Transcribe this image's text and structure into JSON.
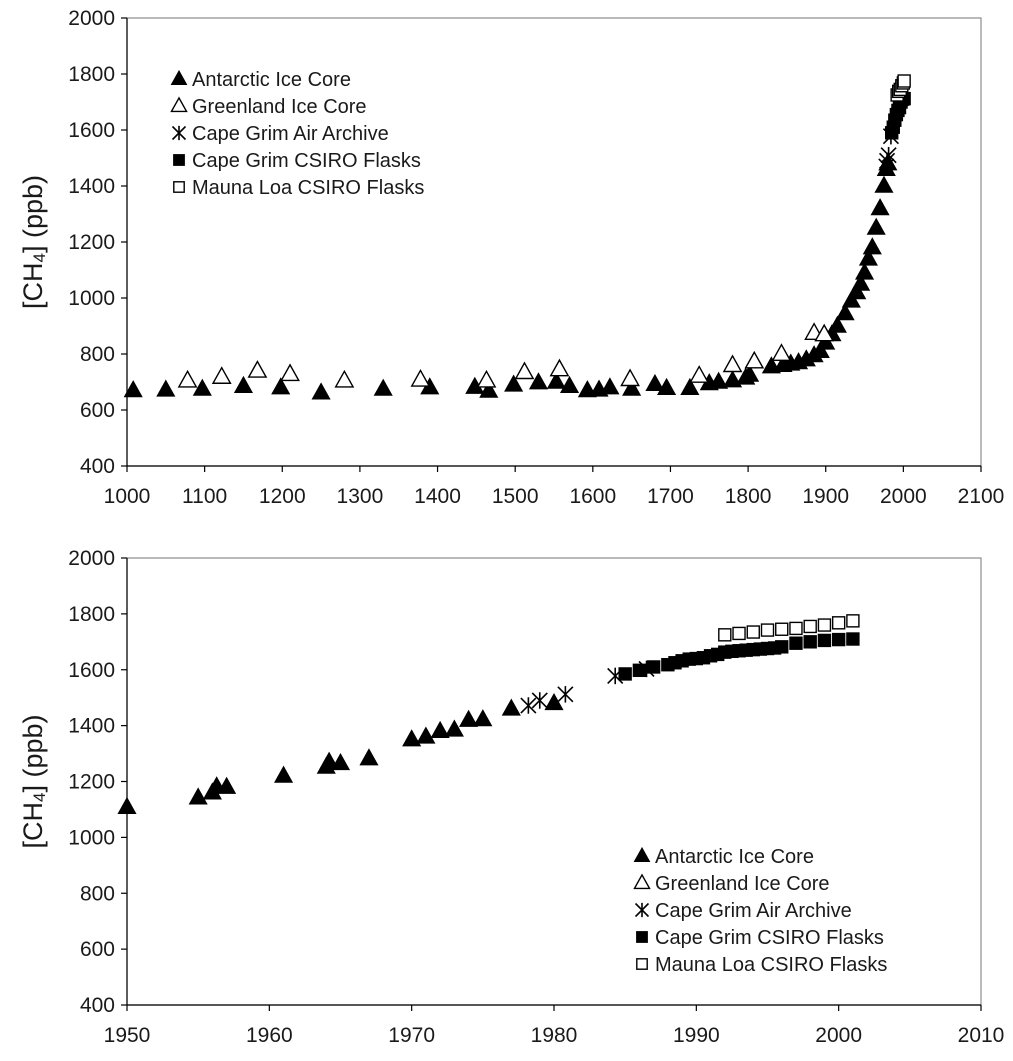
{
  "chart_data": [
    {
      "type": "scatter",
      "title": "",
      "xlabel": "",
      "ylabel": "[CH4] (ppb)",
      "xlim": [
        1000,
        2100
      ],
      "ylim": [
        400,
        2000
      ],
      "xticks": [
        1000,
        1100,
        1200,
        1300,
        1400,
        1500,
        1600,
        1700,
        1800,
        1900,
        2000,
        2100
      ],
      "yticks": [
        400,
        600,
        800,
        1000,
        1200,
        1400,
        1600,
        1800,
        2000
      ],
      "grid": false,
      "legend_position": "top-left",
      "series": [
        {
          "name": "Antarctic Ice Core",
          "marker": "triangle-filled",
          "points": [
            [
              1008,
              670
            ],
            [
              1050,
              672
            ],
            [
              1097,
              675
            ],
            [
              1150,
              685
            ],
            [
              1198,
              680
            ],
            [
              1250,
              662
            ],
            [
              1330,
              675
            ],
            [
              1390,
              680
            ],
            [
              1448,
              682
            ],
            [
              1466,
              668
            ],
            [
              1498,
              690
            ],
            [
              1530,
              698
            ],
            [
              1553,
              700
            ],
            [
              1570,
              685
            ],
            [
              1593,
              670
            ],
            [
              1608,
              672
            ],
            [
              1622,
              680
            ],
            [
              1650,
              675
            ],
            [
              1680,
              692
            ],
            [
              1695,
              678
            ],
            [
              1725,
              678
            ],
            [
              1750,
              695
            ],
            [
              1762,
              700
            ],
            [
              1780,
              705
            ],
            [
              1797,
              715
            ],
            [
              1802,
              725
            ],
            [
              1830,
              755
            ],
            [
              1845,
              760
            ],
            [
              1855,
              765
            ],
            [
              1865,
              770
            ],
            [
              1875,
              780
            ],
            [
              1885,
              795
            ],
            [
              1893,
              810
            ],
            [
              1900,
              840
            ],
            [
              1908,
              870
            ],
            [
              1915,
              900
            ],
            [
              1925,
              945
            ],
            [
              1933,
              990
            ],
            [
              1940,
              1020
            ],
            [
              1945,
              1050
            ],
            [
              1950,
              1090
            ],
            [
              1955,
              1140
            ],
            [
              1960,
              1180
            ],
            [
              1965,
              1250
            ],
            [
              1970,
              1320
            ],
            [
              1975,
              1400
            ],
            [
              1978,
              1460
            ],
            [
              1980,
              1480
            ]
          ]
        },
        {
          "name": "Greenland Ice Core",
          "marker": "triangle-open",
          "points": [
            [
              1078,
              705
            ],
            [
              1122,
              718
            ],
            [
              1168,
              740
            ],
            [
              1210,
              728
            ],
            [
              1280,
              705
            ],
            [
              1378,
              708
            ],
            [
              1463,
              705
            ],
            [
              1512,
              735
            ],
            [
              1557,
              745
            ],
            [
              1648,
              710
            ],
            [
              1737,
              722
            ],
            [
              1780,
              760
            ],
            [
              1808,
              773
            ],
            [
              1843,
              800
            ],
            [
              1885,
              875
            ],
            [
              1898,
              870
            ]
          ]
        },
        {
          "name": "Cape Grim Air Archive",
          "marker": "asterisk",
          "points": [
            [
              1978,
              1470
            ],
            [
              1979,
              1490
            ],
            [
              1981,
              1510
            ],
            [
              1984,
              1578
            ]
          ]
        },
        {
          "name": "Cape Grim CSIRO Flasks",
          "marker": "square-filled",
          "points": [
            [
              1985,
              1590
            ],
            [
              1987,
              1610
            ],
            [
              1989,
              1635
            ],
            [
              1991,
              1655
            ],
            [
              1993,
              1670
            ],
            [
              1995,
              1680
            ],
            [
              1997,
              1700
            ],
            [
              1999,
              1710
            ],
            [
              2001,
              1712
            ]
          ]
        },
        {
          "name": "Mauna Loa CSIRO Flasks",
          "marker": "square-open",
          "points": [
            [
              1992,
              1725
            ],
            [
              1994,
              1738
            ],
            [
              1996,
              1745
            ],
            [
              1998,
              1758
            ],
            [
              2000,
              1768
            ],
            [
              2001,
              1775
            ]
          ]
        }
      ]
    },
    {
      "type": "scatter",
      "title": "",
      "xlabel": "",
      "ylabel": "[CH4] (ppb)",
      "xlim": [
        1950,
        2010
      ],
      "ylim": [
        400,
        2000
      ],
      "xticks": [
        1950,
        1960,
        1970,
        1980,
        1990,
        2000,
        2010
      ],
      "yticks": [
        400,
        600,
        800,
        1000,
        1200,
        1400,
        1600,
        1800,
        2000
      ],
      "grid": false,
      "legend_position": "bottom-right",
      "series": [
        {
          "name": "Antarctic Ice Core",
          "marker": "triangle-filled",
          "points": [
            [
              1950,
              1108
            ],
            [
              1955,
              1142
            ],
            [
              1956,
              1160
            ],
            [
              1956.3,
              1182
            ],
            [
              1957,
              1180
            ],
            [
              1961,
              1220
            ],
            [
              1964,
              1252
            ],
            [
              1964.2,
              1270
            ],
            [
              1965,
              1265
            ],
            [
              1967,
              1282
            ],
            [
              1970,
              1350
            ],
            [
              1971,
              1360
            ],
            [
              1972,
              1380
            ],
            [
              1973,
              1385
            ],
            [
              1974,
              1420
            ],
            [
              1975,
              1422
            ],
            [
              1977,
              1460
            ],
            [
              1980,
              1480
            ]
          ]
        },
        {
          "name": "Greenland Ice Core",
          "marker": "triangle-open",
          "points": []
        },
        {
          "name": "Cape Grim Air Archive",
          "marker": "asterisk",
          "points": [
            [
              1978.2,
              1472
            ],
            [
              1979,
              1490
            ],
            [
              1980.8,
              1512
            ],
            [
              1984.3,
              1578
            ],
            [
              1986.5,
              1603
            ]
          ]
        },
        {
          "name": "Cape Grim CSIRO Flasks",
          "marker": "square-filled",
          "points": [
            [
              1985,
              1585
            ],
            [
              1986,
              1598
            ],
            [
              1987,
              1610
            ],
            [
              1988,
              1618
            ],
            [
              1988.5,
              1625
            ],
            [
              1989,
              1632
            ],
            [
              1989.5,
              1638
            ],
            [
              1990,
              1640
            ],
            [
              1990.5,
              1643
            ],
            [
              1991,
              1650
            ],
            [
              1991.5,
              1655
            ],
            [
              1992,
              1663
            ],
            [
              1992.5,
              1666
            ],
            [
              1993,
              1668
            ],
            [
              1993.5,
              1670
            ],
            [
              1994,
              1672
            ],
            [
              1994.5,
              1674
            ],
            [
              1995,
              1676
            ],
            [
              1995.5,
              1678
            ],
            [
              1996,
              1682
            ],
            [
              1997,
              1695
            ],
            [
              1998,
              1700
            ],
            [
              1999,
              1705
            ],
            [
              2000,
              1708
            ],
            [
              2001,
              1710
            ]
          ]
        },
        {
          "name": "Mauna Loa CSIRO Flasks",
          "marker": "square-open",
          "points": [
            [
              1992,
              1725
            ],
            [
              1993,
              1730
            ],
            [
              1994,
              1735
            ],
            [
              1995,
              1742
            ],
            [
              1996,
              1745
            ],
            [
              1997,
              1748
            ],
            [
              1998,
              1755
            ],
            [
              1999,
              1760
            ],
            [
              2000,
              1768
            ],
            [
              2001,
              1775
            ]
          ]
        }
      ]
    }
  ]
}
